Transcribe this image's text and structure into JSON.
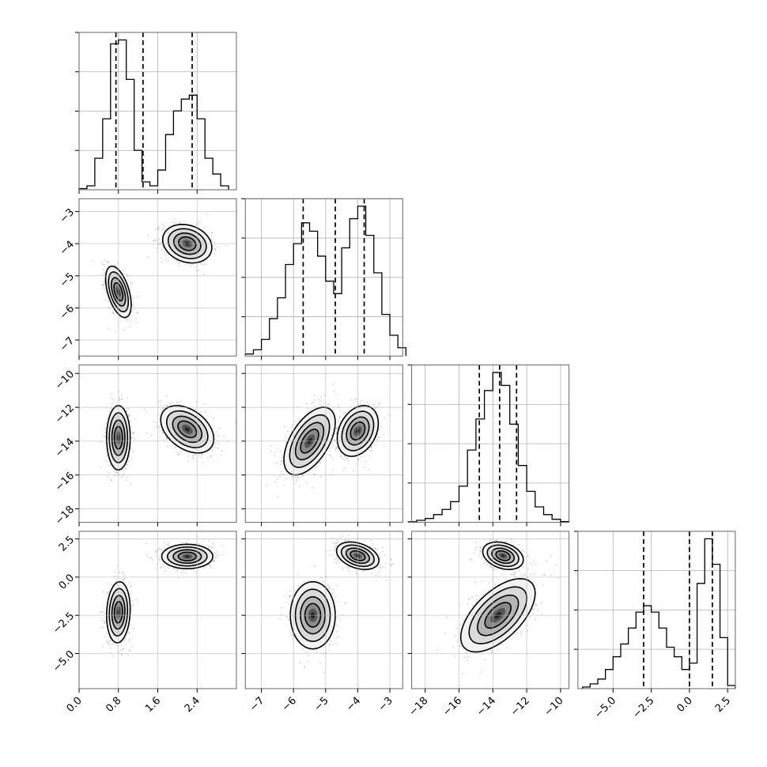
{
  "chart_data": {
    "type": "corner",
    "title": "",
    "grid": true,
    "parameters": [
      {
        "index": 0,
        "range": [
          0.0,
          3.2
        ],
        "ticks": [
          0.0,
          0.8,
          1.6,
          2.4
        ],
        "tick_labels": [
          "0.0",
          "0.8",
          "1.6",
          "2.4"
        ],
        "quantiles": [
          0.75,
          1.3,
          2.3
        ]
      },
      {
        "index": 1,
        "range": [
          -7.5,
          -2.6
        ],
        "ticks": [
          -7,
          -6,
          -5,
          -4,
          -3
        ],
        "tick_labels": [
          "−7",
          "−6",
          "−5",
          "−4",
          "−3"
        ],
        "quantiles": [
          -5.7,
          -4.7,
          -3.8
        ]
      },
      {
        "index": 2,
        "range": [
          -18.8,
          -9.5
        ],
        "ticks": [
          -18,
          -16,
          -14,
          -12,
          -10
        ],
        "tick_labels": [
          "−18",
          "−16",
          "−14",
          "−12",
          "−10"
        ],
        "quantiles": [
          -14.8,
          -13.6,
          -12.6
        ]
      },
      {
        "index": 3,
        "range": [
          -7.3,
          3.0
        ],
        "ticks": [
          -5.0,
          -2.5,
          0.0,
          2.5
        ],
        "tick_labels": [
          "−5.0",
          "−2.5",
          "0.0",
          "2.5"
        ],
        "quantiles": [
          -3.0,
          0.0,
          1.5
        ]
      }
    ],
    "histograms": [
      {
        "param": 0,
        "bins": [
          0.0,
          0.16,
          0.32,
          0.48,
          0.64,
          0.8,
          0.96,
          1.12,
          1.28,
          1.44,
          1.6,
          1.76,
          1.92,
          2.08,
          2.24,
          2.4,
          2.56,
          2.72,
          2.88,
          3.04
        ],
        "counts": [
          0.3,
          1,
          8,
          18,
          37,
          38,
          28,
          10,
          2,
          1,
          5,
          14,
          20,
          23,
          24,
          18,
          8,
          4,
          1
        ]
      },
      {
        "param": 1,
        "bins": [
          -7.5,
          -7.25,
          -7.0,
          -6.75,
          -6.5,
          -6.25,
          -6.0,
          -5.75,
          -5.5,
          -5.25,
          -5.0,
          -4.75,
          -4.5,
          -4.25,
          -4.0,
          -3.75,
          -3.5,
          -3.25,
          -3.0,
          -2.75,
          -2.5
        ],
        "counts": [
          0.5,
          1.5,
          4,
          9,
          14,
          22,
          27,
          32,
          30,
          24,
          18,
          15,
          26,
          33,
          36,
          29,
          20,
          10,
          5,
          2
        ]
      },
      {
        "param": 2,
        "bins": [
          -19,
          -18.5,
          -18,
          -17.5,
          -17,
          -16.5,
          -16,
          -15.5,
          -15,
          -14.5,
          -14,
          -13.5,
          -13,
          -12.5,
          -12,
          -11.5,
          -11,
          -10.5,
          -10,
          -9.5
        ],
        "counts": [
          0.2,
          0.8,
          1.5,
          3,
          5,
          8,
          14,
          28,
          40,
          51,
          58,
          53,
          38,
          22,
          12,
          6,
          3,
          1.2,
          0.3
        ]
      },
      {
        "param": 3,
        "bins": [
          -7.0,
          -6.5,
          -6.0,
          -5.5,
          -5.0,
          -4.5,
          -4.0,
          -3.5,
          -3.0,
          -2.5,
          -2.0,
          -1.5,
          -1.0,
          -0.5,
          0.0,
          0.5,
          1.0,
          1.5,
          2.0,
          2.5,
          3.0
        ],
        "counts": [
          0.5,
          1.5,
          3,
          6,
          10,
          14,
          19,
          24,
          26,
          24,
          19,
          13,
          10,
          6,
          8,
          33,
          47,
          39,
          16,
          1
        ]
      }
    ],
    "blobs_2d": [
      {
        "row": 1,
        "col": 0,
        "blobs": [
          {
            "mean": [
              0.8,
              -5.5
            ],
            "sd": [
              0.13,
              0.4
            ],
            "rho": -0.5,
            "w": 1
          },
          {
            "mean": [
              2.2,
              -4.0
            ],
            "sd": [
              0.25,
              0.3
            ],
            "rho": -0.2,
            "w": 1
          }
        ]
      },
      {
        "row": 2,
        "col": 0,
        "blobs": [
          {
            "mean": [
              0.8,
              -13.8
            ],
            "sd": [
              0.12,
              0.95
            ],
            "rho": 0,
            "w": 1
          },
          {
            "mean": [
              2.2,
              -13.3
            ],
            "sd": [
              0.27,
              0.7
            ],
            "rho": -0.4,
            "w": 1
          }
        ]
      },
      {
        "row": 2,
        "col": 1,
        "blobs": [
          {
            "mean": [
              -5.5,
              -14.0
            ],
            "sd": [
              0.4,
              1.0
            ],
            "rho": 0.55,
            "w": 1
          },
          {
            "mean": [
              -4.0,
              -13.4
            ],
            "sd": [
              0.32,
              0.75
            ],
            "rho": 0.3,
            "w": 1
          }
        ]
      },
      {
        "row": 3,
        "col": 0,
        "blobs": [
          {
            "mean": [
              0.8,
              -2.3
            ],
            "sd": [
              0.12,
              1.0
            ],
            "rho": 0.1,
            "w": 1
          },
          {
            "mean": [
              2.2,
              1.35
            ],
            "sd": [
              0.26,
              0.4
            ],
            "rho": 0,
            "w": 1
          }
        ]
      },
      {
        "row": 3,
        "col": 1,
        "blobs": [
          {
            "mean": [
              -5.4,
              -2.5
            ],
            "sd": [
              0.35,
              1.1
            ],
            "rho": 0,
            "w": 1
          },
          {
            "mean": [
              -4.0,
              1.4
            ],
            "sd": [
              0.33,
              0.45
            ],
            "rho": -0.35,
            "w": 1
          }
        ]
      },
      {
        "row": 3,
        "col": 2,
        "blobs": [
          {
            "mean": [
              -13.7,
              -2.5
            ],
            "sd": [
              1.1,
              1.2
            ],
            "rho": 0.6,
            "w": 1
          },
          {
            "mean": [
              -13.4,
              1.4
            ],
            "sd": [
              0.6,
              0.45
            ],
            "rho": -0.3,
            "w": 1
          }
        ]
      }
    ]
  }
}
